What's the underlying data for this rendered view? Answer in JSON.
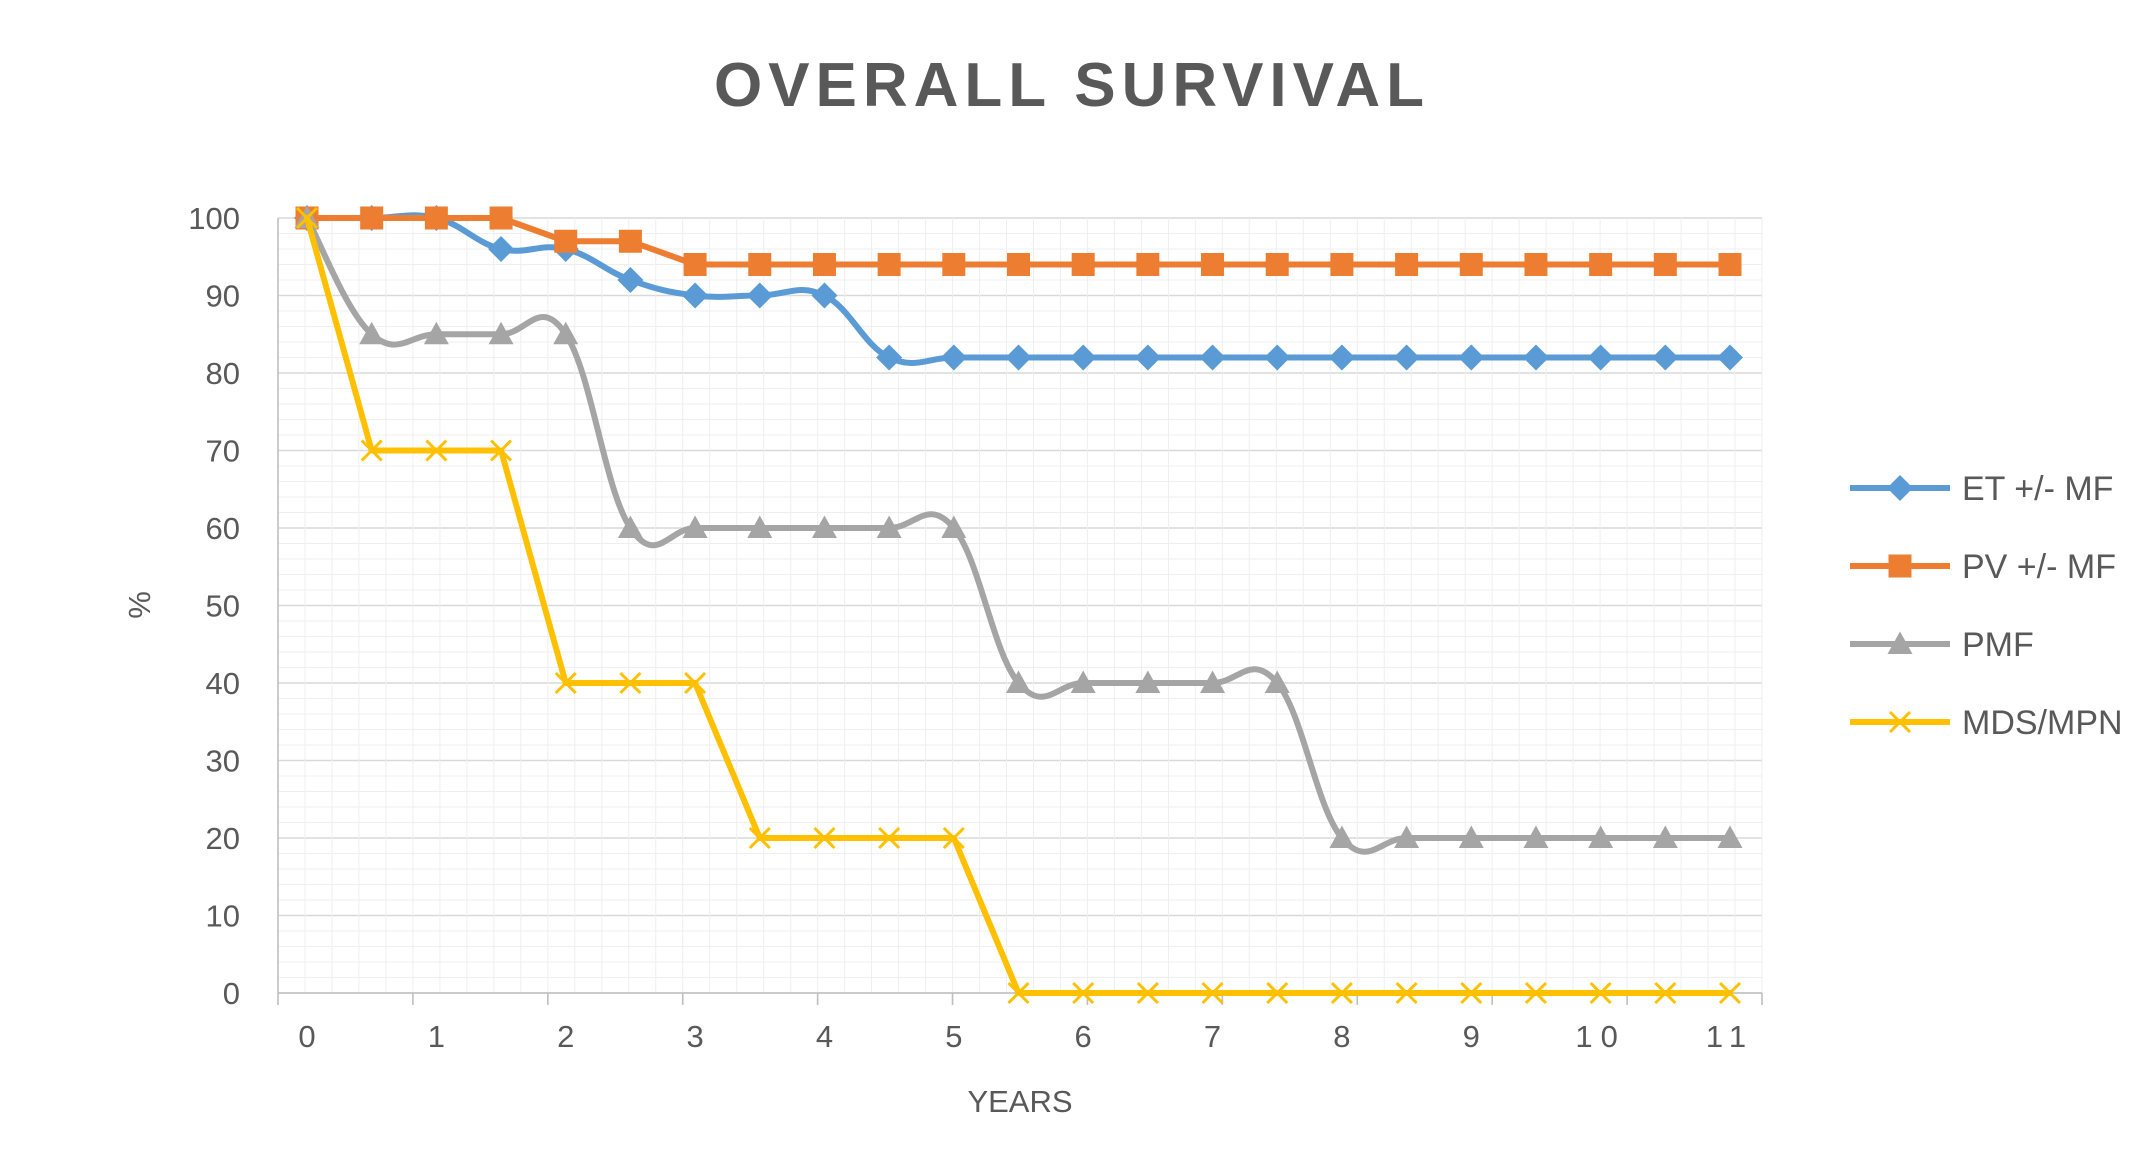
{
  "chart_data": {
    "type": "line",
    "title": "OVERALL SURVIVAL",
    "xlabel": "YEARS",
    "ylabel": "%",
    "ylim": [
      0,
      100
    ],
    "y_ticks": [
      "0",
      "10",
      "20",
      "30",
      "40",
      "50",
      "60",
      "70",
      "80",
      "90",
      "100"
    ],
    "x_ticks": [
      "0",
      "1",
      "2",
      "3",
      "4",
      "5",
      "6",
      "7",
      "8",
      "9",
      "10",
      "11"
    ],
    "grid": true,
    "legend_position": "right",
    "x": [
      0,
      0.5,
      1,
      1.5,
      2,
      2.5,
      3,
      3.5,
      4,
      4.5,
      5,
      5.5,
      6,
      6.5,
      7,
      7.5,
      8,
      8.5,
      9,
      9.5,
      10,
      10.5,
      11
    ],
    "series": [
      {
        "name": "ET +/- MF",
        "color": "#5B9BD5",
        "marker": "diamond",
        "values": [
          100,
          100,
          100,
          96,
          96,
          92,
          90,
          90,
          90,
          82,
          82,
          82,
          82,
          82,
          82,
          82,
          82,
          82,
          82,
          82,
          82,
          82,
          82
        ]
      },
      {
        "name": "PV +/- MF",
        "color": "#ED7D31",
        "marker": "square",
        "values": [
          100,
          100,
          100,
          100,
          97,
          97,
          94,
          94,
          94,
          94,
          94,
          94,
          94,
          94,
          94,
          94,
          94,
          94,
          94,
          94,
          94,
          94,
          94
        ]
      },
      {
        "name": "PMF",
        "color": "#A5A5A5",
        "marker": "triangle",
        "values": [
          100,
          85,
          85,
          85,
          85,
          60,
          60,
          60,
          60,
          60,
          60,
          40,
          40,
          40,
          40,
          40,
          20,
          20,
          20,
          20,
          20,
          20,
          20
        ]
      },
      {
        "name": "MDS/MPN",
        "color": "#FFC000",
        "marker": "x",
        "values": [
          100,
          70,
          70,
          70,
          40,
          40,
          40,
          20,
          20,
          20,
          20,
          0,
          0,
          0,
          0,
          0,
          0,
          0,
          0,
          0,
          0,
          0,
          0
        ]
      }
    ]
  }
}
